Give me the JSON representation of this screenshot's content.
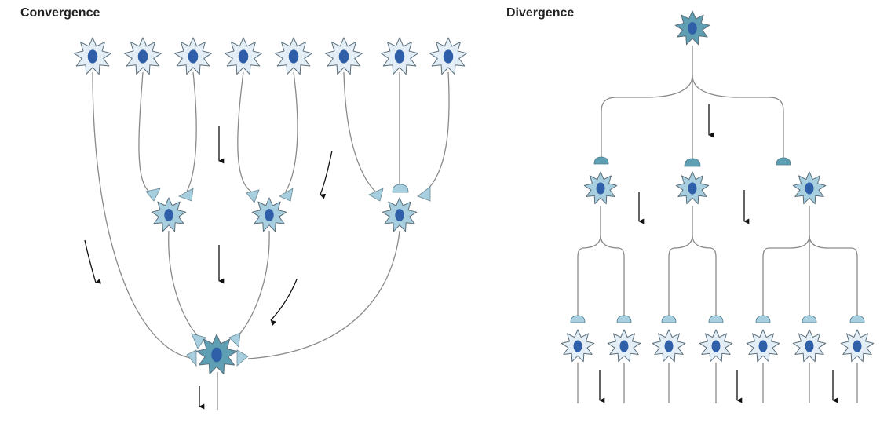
{
  "panels": {
    "convergence": {
      "title": "Convergence"
    },
    "divergence": {
      "title": "Divergence"
    }
  },
  "colors": {
    "light_neuron": "#e4eef6",
    "mid_neuron": "#a8cfdf",
    "dark_neuron": "#5f9fb3",
    "nucleus": "#2f5fa8",
    "line": "#8a8a8a",
    "arrow": "#111111"
  }
}
